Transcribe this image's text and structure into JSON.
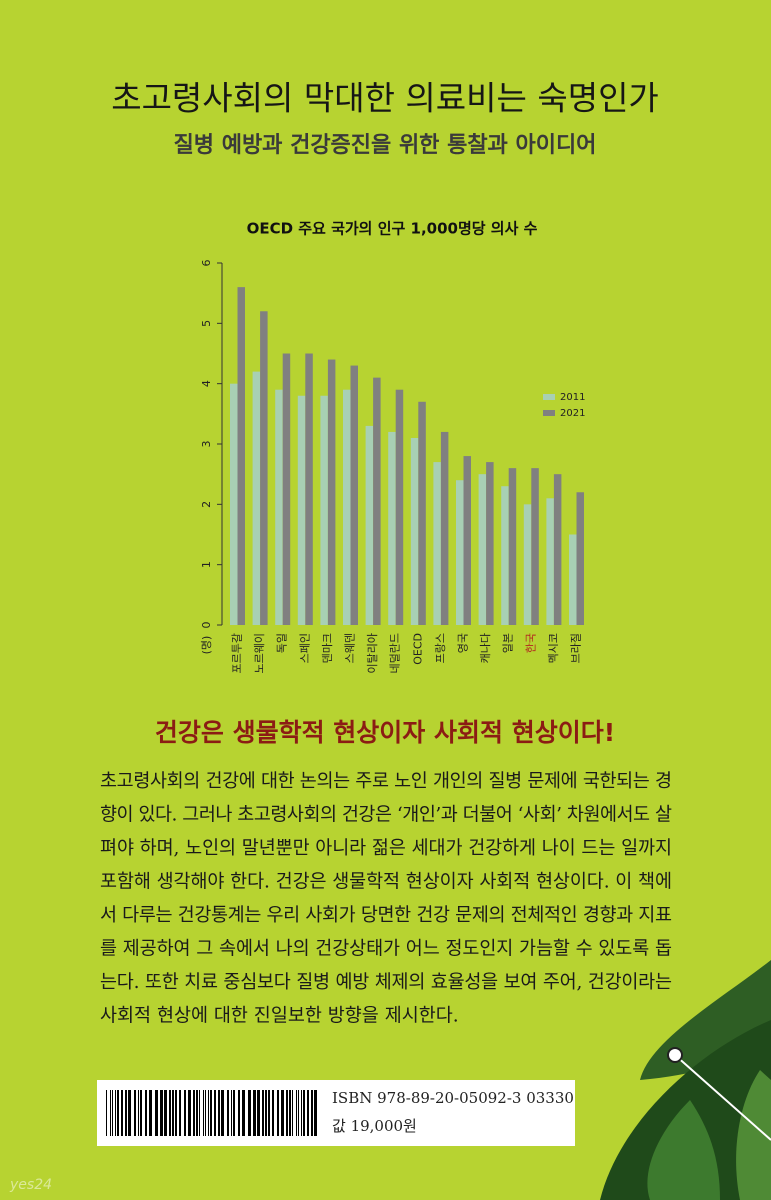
{
  "header": {
    "title": "초고령사회의 막대한 의료비는 숙명인가",
    "subtitle": "질병 예방과 건강증진을 위한 통찰과 아이디어"
  },
  "chart_data": {
    "type": "bar",
    "title": "OECD 주요 국가의 인구 1,000명당 의사 수",
    "y_label": "(명)",
    "categories": [
      "포르투갈",
      "노르웨이",
      "독일",
      "스페인",
      "덴마크",
      "스웨덴",
      "이탈리아",
      "네덜란드",
      "OECD",
      "프랑스",
      "영국",
      "캐나다",
      "일본",
      "한국",
      "멕시코",
      "브라질"
    ],
    "label_colors": [
      "#222222",
      "#222222",
      "#222222",
      "#222222",
      "#222222",
      "#222222",
      "#222222",
      "#222222",
      "#222222",
      "#222222",
      "#222222",
      "#222222",
      "#222222",
      "#b3261e",
      "#222222",
      "#222222"
    ],
    "series": [
      {
        "name": "2011",
        "color": "#a8d0b4",
        "values": [
          4.0,
          4.2,
          3.9,
          3.8,
          3.8,
          3.9,
          3.3,
          3.2,
          3.1,
          2.7,
          2.4,
          2.5,
          2.3,
          2.0,
          2.1,
          1.5
        ]
      },
      {
        "name": "2021",
        "color": "#808080",
        "values": [
          5.6,
          5.2,
          4.5,
          4.5,
          4.4,
          4.3,
          4.1,
          3.9,
          3.7,
          3.2,
          2.8,
          2.7,
          2.6,
          2.6,
          2.5,
          2.2
        ]
      }
    ],
    "ylim": [
      0,
      6
    ],
    "yticks": [
      0,
      1,
      2,
      3,
      4,
      5,
      6
    ],
    "legend": "right"
  },
  "headline": "건강은 생물학적 현상이자 사회적 현상이다!",
  "body": [
    "초고령사회의 건강에 대한 논의는 주로 노인 개인의 질병 문제에 국한되는 경",
    "향이 있다. 그러나 초고령사회의 건강은 ‘개인’과 더불어 ‘사회’ 차원에서도 살",
    "펴야 하며, 노인의 말년뿐만 아니라 젊은 세대가 건강하게 나이 드는 일까지",
    "포함해 생각해야 한다. 건강은 생물학적 현상이자 사회적 현상이다. 이 책에",
    "서 다루는 건강통계는 우리 사회가 당면한 건강 문제의 전체적인 경향과 지표",
    "를 제공하여 그 속에서 나의 건강상태가 어느 정도인지 가늠할 수 있도록 돕",
    "는다. 또한 치료 중심보다 질병 예방 체제의 효율성을 보여 주어, 건강이라는",
    "사회적 현상에 대한 진일보한 방향을 제시한다."
  ],
  "barcode": {
    "isbn": "ISBN 978-89-20-05092-3 03330",
    "price": "값 19,000원"
  },
  "watermark": "yes24"
}
